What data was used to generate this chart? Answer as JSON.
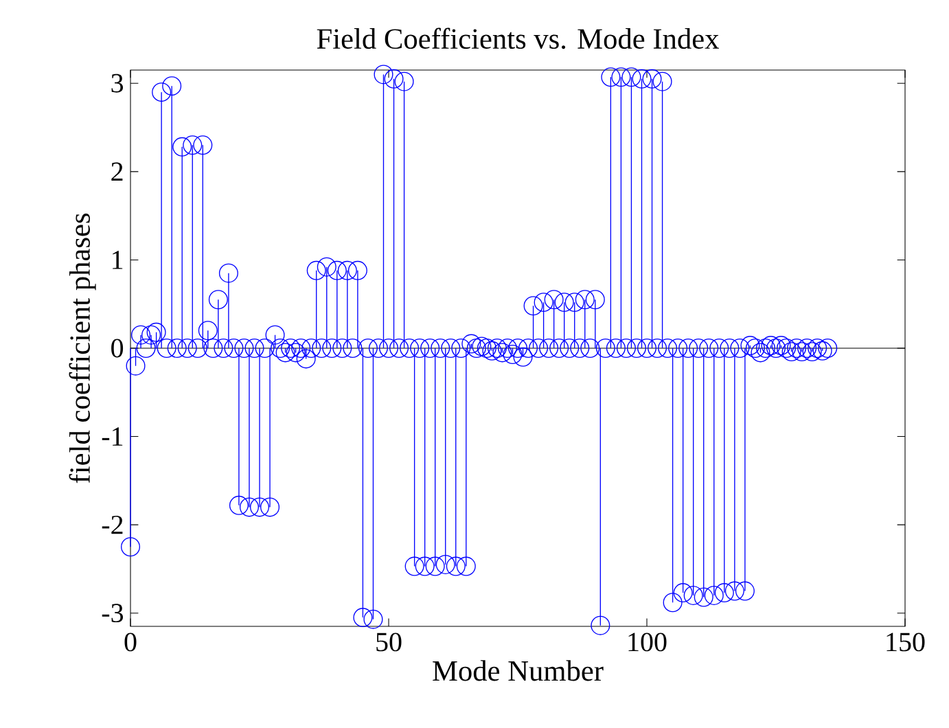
{
  "chart_data": {
    "type": "lollipop",
    "title": "Field Coefficients vs. Mode Index",
    "xlabel": "Mode Number",
    "ylabel": "field coefficient phases",
    "x": [
      0,
      1,
      2,
      3,
      4,
      5,
      6,
      7,
      8,
      9,
      10,
      11,
      12,
      13,
      14,
      15,
      16,
      17,
      18,
      19,
      20,
      21,
      22,
      23,
      24,
      25,
      26,
      27,
      28,
      29,
      30,
      31,
      32,
      33,
      34,
      35,
      36,
      37,
      38,
      39,
      40,
      41,
      42,
      43,
      44,
      45,
      46,
      47,
      48,
      49,
      50,
      51,
      52,
      53,
      54,
      55,
      56,
      57,
      58,
      59,
      60,
      61,
      62,
      63,
      64,
      65,
      66,
      67,
      68,
      69,
      70,
      71,
      72,
      73,
      74,
      75,
      76,
      77,
      78,
      79,
      80,
      81,
      82,
      83,
      84,
      85,
      86,
      87,
      88,
      89,
      90,
      91,
      92,
      93,
      94,
      95,
      96,
      97,
      98,
      99,
      100,
      101,
      102,
      103,
      104,
      105,
      106,
      107,
      108,
      109,
      110,
      111,
      112,
      113,
      114,
      115,
      116,
      117,
      118,
      119,
      120,
      121,
      122,
      123,
      124,
      125,
      126,
      127,
      128,
      129,
      130,
      131,
      132,
      133,
      134,
      135
    ],
    "values": [
      -2.25,
      -0.2,
      0.15,
      0,
      0.15,
      0.18,
      2.9,
      0,
      2.97,
      0,
      2.28,
      0,
      2.3,
      0,
      2.3,
      0.2,
      0,
      0.55,
      0,
      0.85,
      0,
      -1.78,
      0,
      -1.8,
      0,
      -1.8,
      0,
      -1.8,
      0.15,
      0,
      -0.05,
      0,
      -0.05,
      0,
      -0.12,
      0,
      0.88,
      0,
      0.92,
      0,
      0.88,
      0,
      0.88,
      0,
      0.88,
      -3.05,
      0,
      -3.07,
      0,
      3.1,
      0,
      3.05,
      0,
      3.02,
      0,
      -2.47,
      0,
      -2.47,
      0,
      -2.47,
      0,
      -2.45,
      0,
      -2.47,
      0,
      -2.47,
      0.05,
      0,
      0.02,
      0,
      -0.03,
      0,
      -0.05,
      0,
      -0.07,
      0,
      -0.1,
      0,
      0.48,
      0,
      0.52,
      0,
      0.55,
      0,
      0.52,
      0,
      0.52,
      0,
      0.55,
      0,
      0.55,
      -3.14,
      0,
      3.07,
      0,
      3.07,
      0,
      3.07,
      0,
      3.05,
      0,
      3.05,
      0,
      3.02,
      0,
      -2.88,
      0,
      -2.77,
      0,
      -2.8,
      0,
      -2.82,
      0,
      -2.8,
      0,
      -2.77,
      0,
      -2.75,
      0,
      -2.75,
      0.03,
      0,
      -0.05,
      0,
      0.03,
      0,
      0.03,
      0,
      -0.04,
      0,
      -0.04,
      0,
      -0.04,
      0,
      -0.03,
      0
    ],
    "color": "#0000ff",
    "marker": "circle",
    "line_style": "solid",
    "xlim": [
      0,
      150
    ],
    "xticks": [
      0,
      50,
      100,
      150
    ],
    "ylim": [
      -3.15,
      3.15
    ],
    "yticks": [
      -3,
      -2,
      -1,
      0,
      1,
      2,
      3
    ],
    "ref_lines": [
      {
        "axis": "y",
        "value": 0,
        "color": "#000000"
      }
    ]
  }
}
